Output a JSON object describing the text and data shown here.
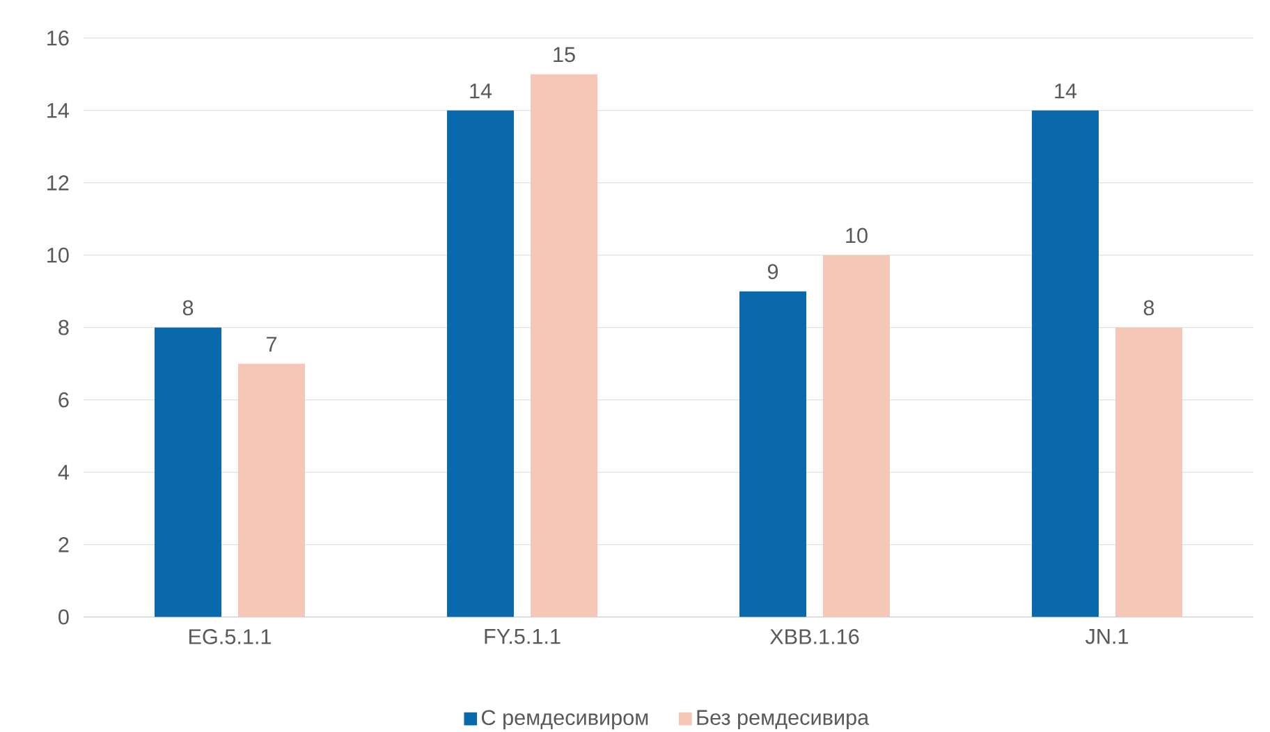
{
  "chart_data": {
    "type": "bar",
    "categories": [
      "EG.5.1.1",
      "FY.5.1.1",
      "XBB.1.16",
      "JN.1"
    ],
    "series": [
      {
        "name": "С ремдесивиром",
        "color": "#0a69aa",
        "values": [
          8,
          14,
          9,
          14
        ]
      },
      {
        "name": "Без ремдесивира",
        "color": "#f4c7b7",
        "values": [
          7,
          15,
          10,
          8
        ]
      }
    ],
    "ylim": [
      0,
      16
    ],
    "yticks": [
      0,
      2,
      4,
      6,
      8,
      10,
      12,
      14,
      16
    ],
    "grid": "y",
    "legend": "bottom",
    "data_labels": true
  }
}
